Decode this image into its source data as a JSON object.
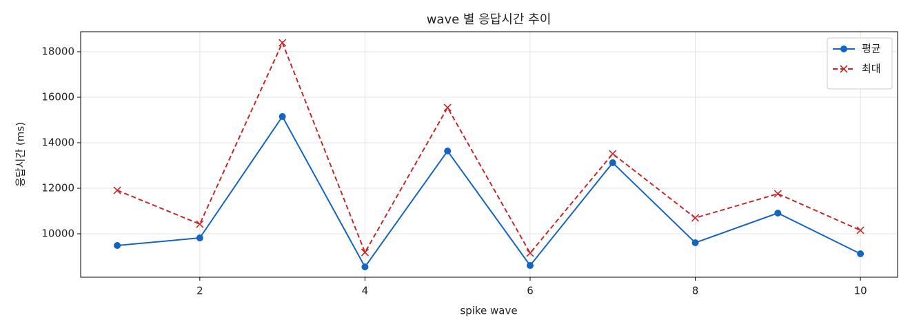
{
  "chart_data": {
    "type": "line",
    "title": "wave 별 응답시간 추이",
    "x_label": "spike wave",
    "y_label": "응답시간 (ms)",
    "x": [
      1,
      2,
      3,
      4,
      5,
      6,
      7,
      8,
      9,
      10
    ],
    "series": [
      {
        "name": "평균",
        "color": "#1565c0",
        "marker": "o",
        "linestyle": "solid",
        "values": [
          9485,
          9818,
          15152,
          8545,
          13636,
          8606,
          13121,
          9606,
          10909,
          9121
        ]
      },
      {
        "name": "최대",
        "color": "#c62828",
        "marker": "x",
        "linestyle": "dashed",
        "values": [
          11909,
          10424,
          18394,
          9182,
          15545,
          9152,
          13515,
          10697,
          11758,
          10152
        ]
      }
    ],
    "xlim": [
      0.557,
      10.45
    ],
    "xticks": [
      2,
      4,
      6,
      8,
      10
    ],
    "ylim": [
      8091,
      18879
    ],
    "yticks": [
      10000,
      12000,
      14000,
      16000,
      18000
    ],
    "grid": true,
    "legend": "upper right"
  }
}
